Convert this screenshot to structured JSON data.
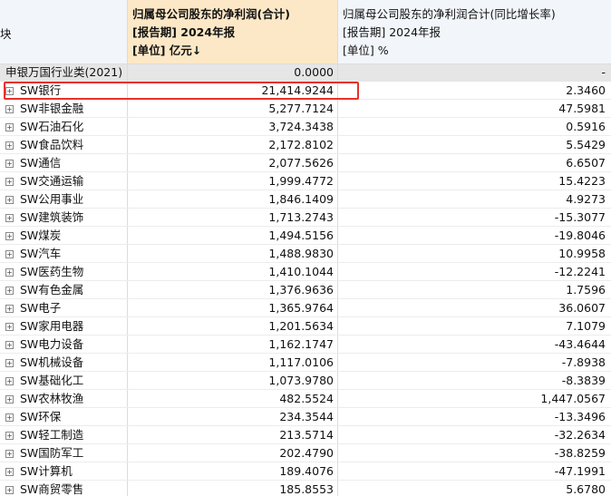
{
  "header": {
    "col1": "块",
    "col2": [
      "归属母公司股东的净利润(合计)",
      "[报告期] 2024年报",
      "[单位] 亿元↓"
    ],
    "col3": [
      "归属母公司股东的净利润合计(同比增长率)",
      "[报告期] 2024年报",
      "[单位] %"
    ]
  },
  "summary": [
    "申银万国行业类(2021)",
    "0.0000",
    "-"
  ],
  "rows": [
    [
      "SW银行",
      "21,414.9244",
      "2.3460"
    ],
    [
      "SW非银金融",
      "5,277.7124",
      "47.5981"
    ],
    [
      "SW石油石化",
      "3,724.3438",
      "0.5916"
    ],
    [
      "SW食品饮料",
      "2,172.8102",
      "5.5429"
    ],
    [
      "SW通信",
      "2,077.5626",
      "6.6507"
    ],
    [
      "SW交通运输",
      "1,999.4772",
      "15.4223"
    ],
    [
      "SW公用事业",
      "1,846.1409",
      "4.9273"
    ],
    [
      "SW建筑装饰",
      "1,713.2743",
      "-15.3077"
    ],
    [
      "SW煤炭",
      "1,494.5156",
      "-19.8046"
    ],
    [
      "SW汽车",
      "1,488.9830",
      "10.9958"
    ],
    [
      "SW医药生物",
      "1,410.1044",
      "-12.2241"
    ],
    [
      "SW有色金属",
      "1,376.9636",
      "1.7596"
    ],
    [
      "SW电子",
      "1,365.9764",
      "36.0607"
    ],
    [
      "SW家用电器",
      "1,201.5634",
      "7.1079"
    ],
    [
      "SW电力设备",
      "1,162.1747",
      "-43.4644"
    ],
    [
      "SW机械设备",
      "1,117.0106",
      "-7.8938"
    ],
    [
      "SW基础化工",
      "1,073.9780",
      "-8.3839"
    ],
    [
      "SW农林牧渔",
      "482.5524",
      "1,447.0567"
    ],
    [
      "SW环保",
      "234.3544",
      "-13.3496"
    ],
    [
      "SW轻工制造",
      "213.5714",
      "-32.2634"
    ],
    [
      "SW国防军工",
      "202.4790",
      "-38.8259"
    ],
    [
      "SW计算机",
      "189.4076",
      "-47.1991"
    ],
    [
      "SW商贸零售",
      "185.8553",
      "5.6780"
    ]
  ]
}
